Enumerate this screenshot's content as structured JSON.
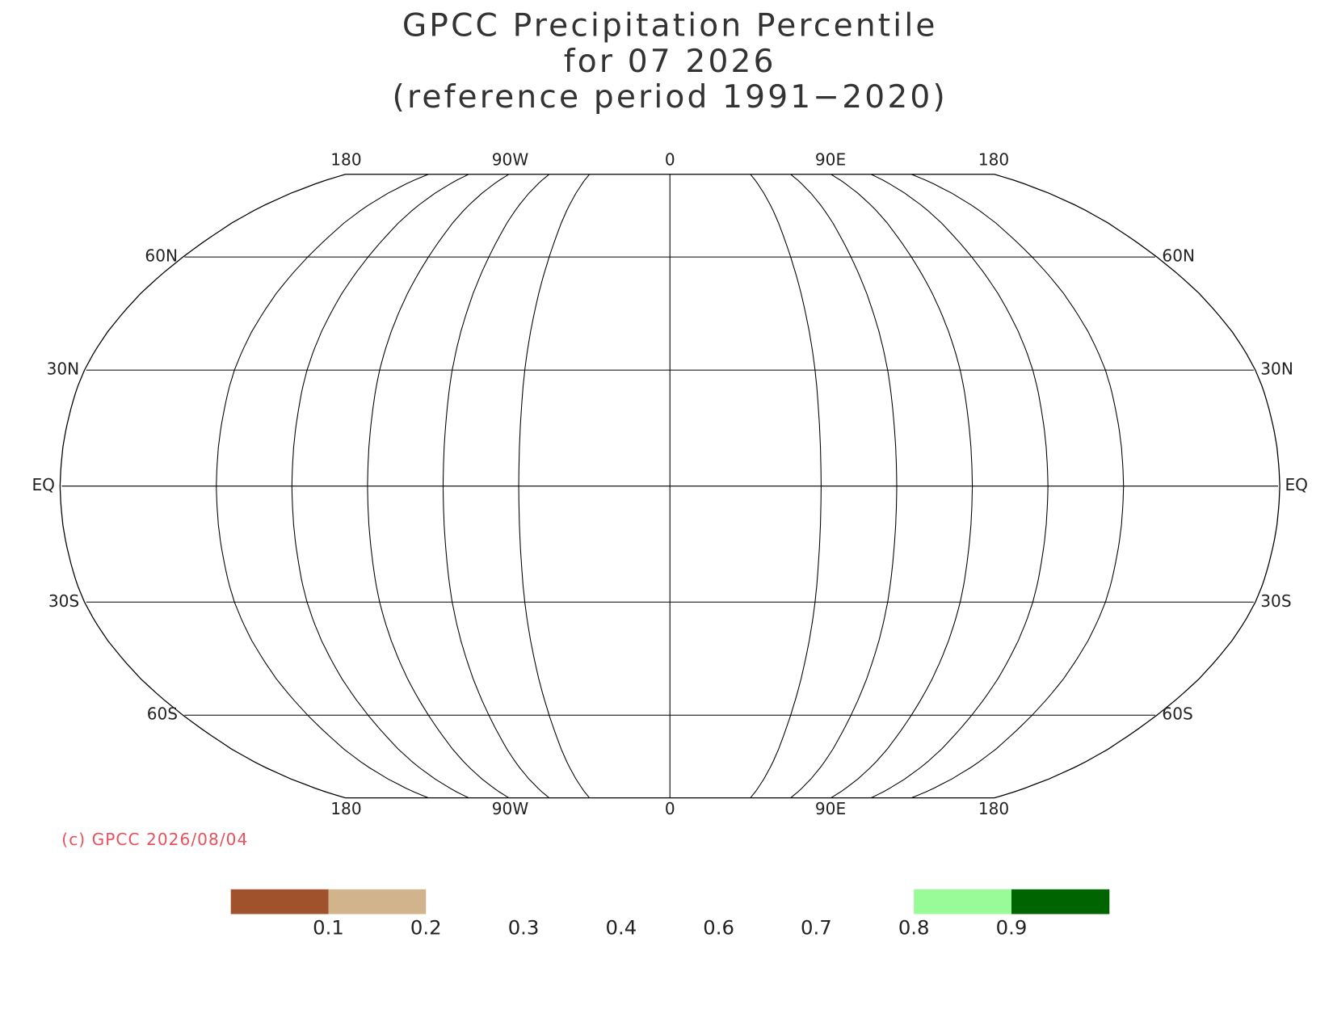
{
  "title": [
    "GPCC Precipitation Percentile",
    "for 07 2026",
    "(reference period 1991−2020)"
  ],
  "longitude_labels": [
    "180",
    "90W",
    "0",
    "90E",
    "180"
  ],
  "latitude_labels": [
    "60N",
    "30N",
    "EQ",
    "30S",
    "60S"
  ],
  "copyright": "(c) GPCC 2026/08/04",
  "colorbar": {
    "colors": [
      "#a0522d",
      "#d2b48c",
      "#ffffff",
      "#ffffff",
      "#ffffff",
      "#ffffff",
      "#ffffff",
      "#98fb98",
      "#006400"
    ],
    "labels": [
      0.1,
      0.2,
      0.3,
      0.4,
      0.6,
      0.7,
      0.8,
      0.9
    ]
  }
}
